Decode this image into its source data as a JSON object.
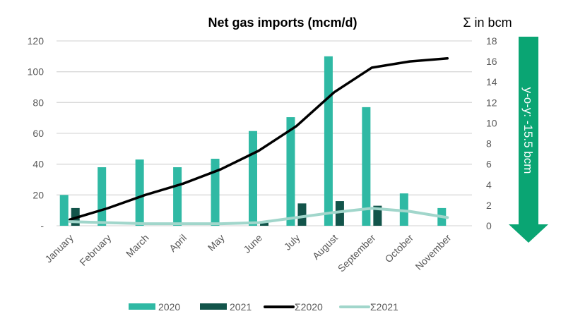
{
  "chart_data": {
    "type": "bar",
    "title": "Net gas imports (mcm/d)",
    "right_axis_title": "Σ in bcm",
    "annotation": "y-o-y: -15.5 bcm",
    "categories": [
      "January",
      "February",
      "March",
      "April",
      "May",
      "June",
      "July",
      "August",
      "September",
      "October",
      "November"
    ],
    "left_axis": {
      "ylim": [
        0,
        120
      ],
      "ticks": [
        "-",
        "20",
        "40",
        "60",
        "80",
        "100",
        "120"
      ],
      "tick_values": [
        0,
        20,
        40,
        60,
        80,
        100,
        120
      ]
    },
    "right_axis": {
      "ylim": [
        0,
        18
      ],
      "ticks": [
        "0",
        "2",
        "4",
        "6",
        "8",
        "10",
        "12",
        "14",
        "16",
        "18"
      ],
      "tick_values": [
        0,
        2,
        4,
        6,
        8,
        10,
        12,
        14,
        16,
        18
      ]
    },
    "grid": true,
    "legend_position": "bottom",
    "series": [
      {
        "name": "2020",
        "type": "bar",
        "axis": "left",
        "color": "#2fb9a4",
        "values": [
          20,
          38,
          43,
          38,
          43.5,
          61.5,
          70.5,
          110,
          77,
          21,
          11.5
        ]
      },
      {
        "name": "2021",
        "type": "bar",
        "axis": "left",
        "color": "#12544a",
        "values": [
          11.5,
          null,
          null,
          null,
          null,
          2,
          14.5,
          16,
          13,
          null,
          null
        ]
      },
      {
        "name": "Σ2020",
        "type": "line",
        "axis": "right",
        "color": "#000000",
        "values": [
          0.6,
          1.7,
          3.0,
          4.1,
          5.5,
          7.3,
          9.7,
          13.0,
          15.4,
          16.0,
          16.3
        ]
      },
      {
        "name": "Σ2021",
        "type": "line",
        "axis": "right",
        "color": "#a1d6cb",
        "values": [
          0.4,
          0.3,
          0.2,
          0.2,
          0.2,
          0.3,
          0.8,
          1.3,
          1.7,
          1.4,
          0.8
        ]
      }
    ],
    "arrow_color": "#0aa573"
  }
}
